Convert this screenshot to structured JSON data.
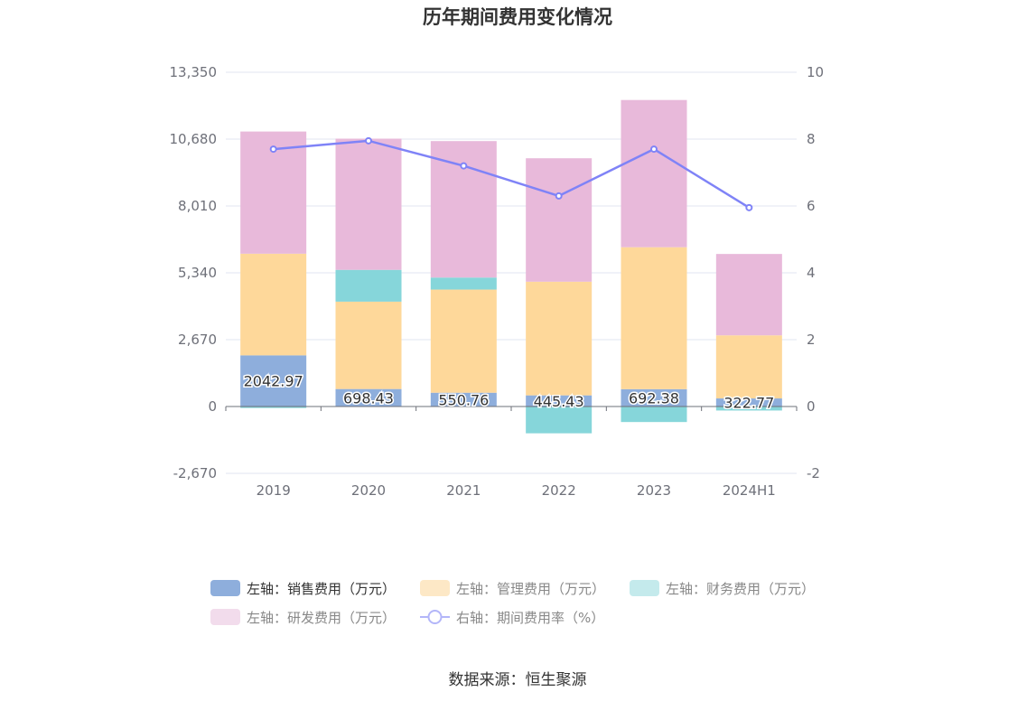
{
  "chart_data": {
    "type": "bar",
    "title": "历年期间费用变化情况",
    "categories": [
      "2019",
      "2020",
      "2021",
      "2022",
      "2023",
      "2024H1"
    ],
    "stacked": true,
    "series": [
      {
        "name": "左轴：销售费用（万元）",
        "axis": "left",
        "type": "bar",
        "color": "#8eaedc",
        "values": [
          2042.97,
          698.43,
          550.76,
          445.43,
          692.38,
          322.77
        ]
      },
      {
        "name": "左轴：管理费用（万元）",
        "axis": "left",
        "type": "bar",
        "color": "#fed89a",
        "values": [
          4060,
          3490,
          4120,
          4540,
          5670,
          2520
        ]
      },
      {
        "name": "左轴：财务费用（万元）",
        "axis": "left",
        "type": "bar",
        "color": "#86d6da",
        "values": [
          -60,
          1270,
          480,
          -1070,
          -620,
          -160
        ]
      },
      {
        "name": "左轴：研发费用（万元）",
        "axis": "left",
        "type": "bar",
        "color": "#e8b9da",
        "values": [
          4880,
          5240,
          5450,
          4930,
          5880,
          3250
        ]
      },
      {
        "name": "右轴：期间费用率（%）",
        "axis": "right",
        "type": "line",
        "color": "#7f83f7",
        "values": [
          7.7,
          7.95,
          7.2,
          6.3,
          7.7,
          5.95
        ]
      }
    ],
    "data_labels": [
      "2042.97",
      "698.43",
      "550.76",
      "445.43",
      "692.38",
      "322.77"
    ],
    "y_left": {
      "min": -2670,
      "max": 13350,
      "ticks": [
        -2670,
        0,
        2670,
        5340,
        8010,
        10680,
        13350
      ],
      "tick_labels": [
        "-2,670",
        "0",
        "2,670",
        "5,340",
        "8,010",
        "10,680",
        "13,350"
      ]
    },
    "y_right": {
      "min": -2,
      "max": 10,
      "ticks": [
        -2,
        0,
        2,
        4,
        6,
        8,
        10
      ],
      "tick_labels": [
        "-2",
        "0",
        "2",
        "4",
        "6",
        "8",
        "10"
      ]
    },
    "grid": true,
    "legend_position": "bottom"
  },
  "legend": [
    {
      "label": "左轴：销售费用（万元）",
      "color": "#8eaedc",
      "kind": "bar",
      "dim": false
    },
    {
      "label": "左轴：管理费用（万元）",
      "color": "#fde8c6",
      "kind": "bar",
      "dim": true
    },
    {
      "label": "左轴：财务费用（万元）",
      "color": "#c4eaec",
      "kind": "bar",
      "dim": true
    },
    {
      "label": "左轴：研发费用（万元）",
      "color": "#f2dcec",
      "kind": "bar",
      "dim": true
    },
    {
      "label": "右轴：期间费用率（%）",
      "color": "#b3b6f9",
      "kind": "line",
      "dim": true
    }
  ],
  "source": "数据来源：恒生聚源",
  "colors": {
    "grid": "#e0e6f1",
    "axis": "#6e7079",
    "text": "#333333"
  }
}
